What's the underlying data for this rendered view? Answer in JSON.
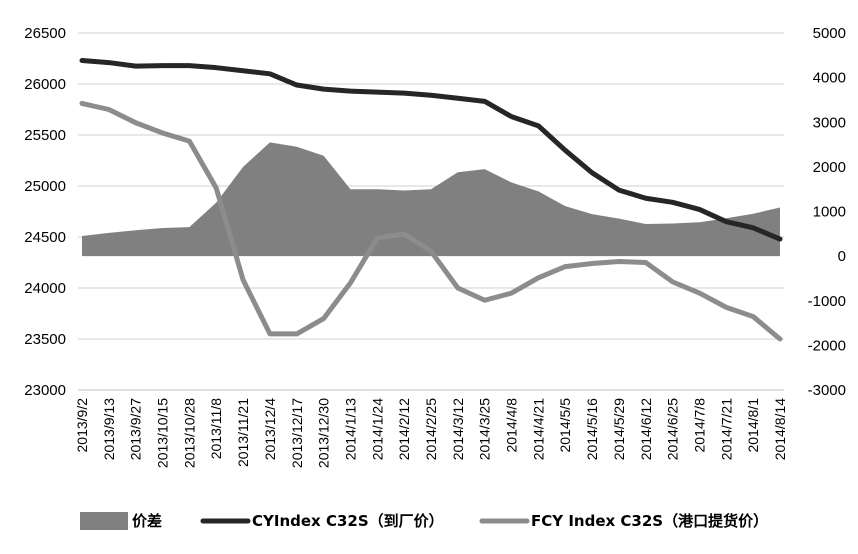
{
  "chart_data": {
    "type": "line",
    "title": "",
    "xlabel": "",
    "ylabel": "",
    "categories": [
      "2013/9/2",
      "2013/9/13",
      "2013/9/27",
      "2013/10/15",
      "2013/10/28",
      "2013/11/8",
      "2013/11/21",
      "2013/12/4",
      "2013/12/17",
      "2013/12/30",
      "2014/1/13",
      "2014/1/24",
      "2014/2/12",
      "2014/2/25",
      "2014/3/12",
      "2014/3/25",
      "2014/4/8",
      "2014/4/21",
      "2014/5/5",
      "2014/5/16",
      "2014/5/29",
      "2014/6/12",
      "2014/6/25",
      "2014/7/8",
      "2014/7/21",
      "2014/8/1",
      "2014/8/14"
    ],
    "left_axis": {
      "ylim": [
        23000,
        26500
      ],
      "ticks": [
        "23000",
        "23500",
        "24000",
        "24500",
        "25000",
        "25500",
        "26000",
        "26500"
      ]
    },
    "right_axis": {
      "ylim": [
        -3000,
        5000
      ],
      "ticks": [
        "-3000",
        "-2000",
        "-1000",
        "0",
        "1000",
        "2000",
        "3000",
        "4000",
        "5000"
      ]
    },
    "grid": "horizontal",
    "legend_position": "bottom",
    "series": [
      {
        "name": "价差",
        "kind": "area",
        "axis": "right",
        "color": "#808080",
        "values": [
          450,
          520,
          580,
          630,
          650,
          1200,
          2000,
          2550,
          2450,
          2250,
          1500,
          1500,
          1470,
          1500,
          1880,
          1950,
          1650,
          1450,
          1120,
          940,
          840,
          720,
          730,
          760,
          850,
          950,
          1090
        ]
      },
      {
        "name": "CYIndex C32S（到厂价）",
        "kind": "line",
        "axis": "left",
        "color": "#262626",
        "values": [
          26230,
          26210,
          26175,
          26180,
          26180,
          26160,
          26130,
          26100,
          25990,
          25950,
          25930,
          25920,
          25910,
          25890,
          25860,
          25830,
          25680,
          25590,
          25350,
          25130,
          24960,
          24880,
          24840,
          24770,
          24650,
          24590,
          24480
        ]
      },
      {
        "name": "FCY Index C32S（港口提货价）",
        "kind": "line",
        "axis": "left",
        "color": "#8c8c8c",
        "values": [
          25810,
          25750,
          25620,
          25520,
          25440,
          24980,
          24080,
          23550,
          23550,
          23700,
          24050,
          24490,
          24530,
          24360,
          24000,
          23880,
          23950,
          24100,
          24210,
          24240,
          24260,
          24250,
          24060,
          23950,
          23810,
          23720,
          23500
        ]
      }
    ]
  }
}
